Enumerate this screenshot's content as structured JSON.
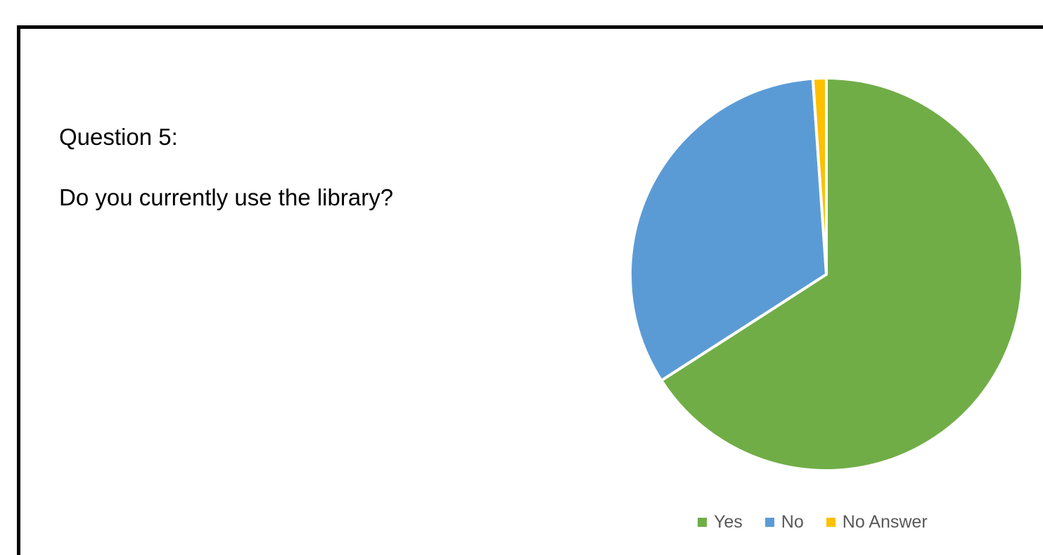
{
  "slide": {
    "question_label": "Question 5:",
    "question_text": "Do you currently use the library?"
  },
  "chart_data": {
    "type": "pie",
    "title": "",
    "start_angle_deg": 0,
    "direction": "clockwise",
    "legend_position": "bottom",
    "slices": [
      {
        "label": "Yes",
        "value": 65.9,
        "color": "#70AD47"
      },
      {
        "label": "No",
        "value": 33.0,
        "color": "#5B9BD5"
      },
      {
        "label": "No Answer",
        "value": 1.1,
        "color": "#FFC000"
      }
    ]
  }
}
